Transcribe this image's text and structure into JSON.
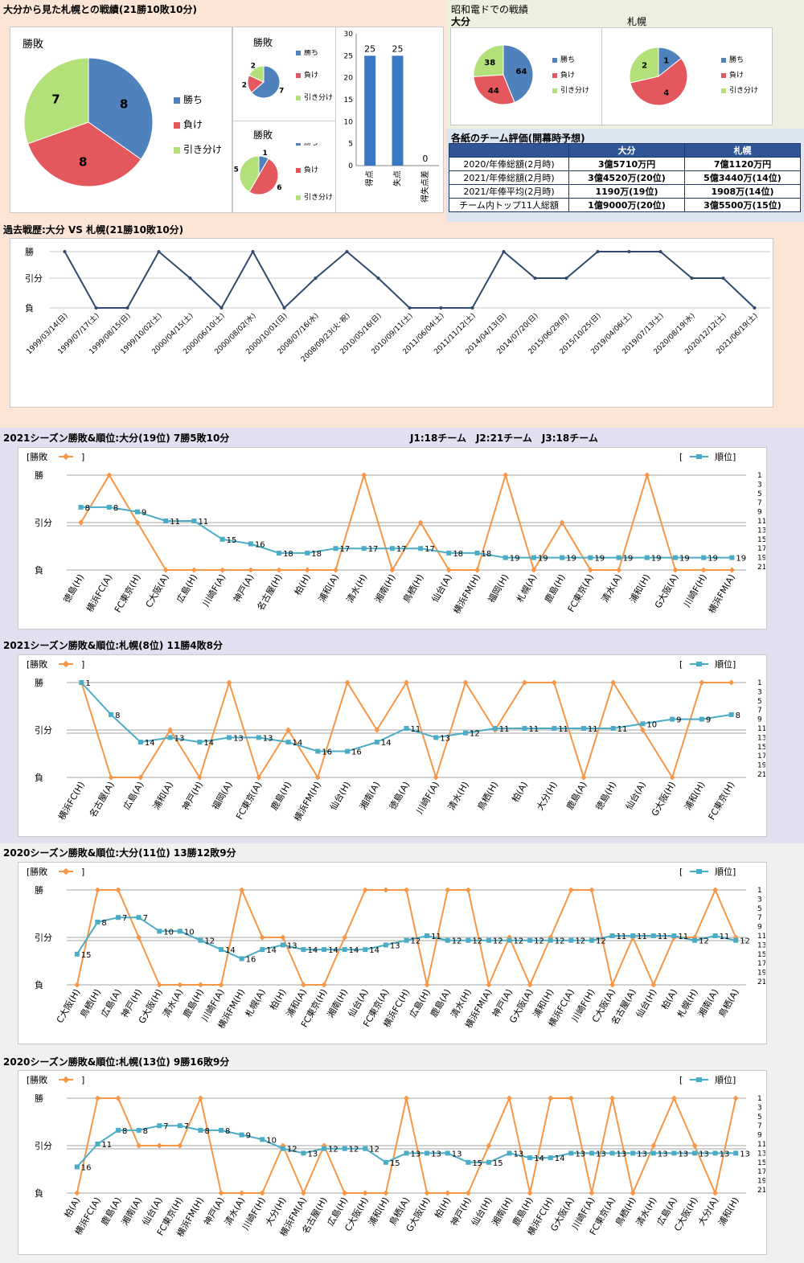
{
  "top": {
    "title": "大分から見た札幌との戦績(21勝10敗10分)",
    "pie_label_main": "勝敗",
    "pie_label_small1": "勝敗",
    "pie_label_small2": "勝敗",
    "legend": [
      "勝ち",
      "負け",
      "引き分け"
    ]
  },
  "showa": {
    "title": "昭和電ドでの戦績",
    "label_oita": "大分",
    "label_sapporo": "札幌"
  },
  "eval_table": {
    "title": "各紙のチーム評価(開幕時予想)",
    "headers": [
      "",
      "大分",
      "札幌"
    ],
    "rows": [
      [
        "2020/年俸総額(2月時)",
        "3億5710万円",
        "7億1120万円"
      ],
      [
        "2021/年俸総額(2月時)",
        "3億4520万(20位)",
        "5億3440万(14位)"
      ],
      [
        "2021/年俸平均(2月時)",
        "1190万(19位)",
        "1908万(14位)"
      ],
      [
        "チーム内トップ11人総額",
        "1億9000万(20位)",
        "3億5500万(15位)"
      ]
    ]
  },
  "history_title": "過去戦歴:大分 VS 札幌(21勝10敗10分)",
  "league_info": "J1:18チーム　J2:21チーム　J3:18チーム",
  "section_titles": [
    "2021シーズン勝敗&順位:大分(19位) 7勝5敗10分",
    "2021シーズン勝敗&順位:札幌(8位) 11勝4敗8分",
    "2020シーズン勝敗&順位:大分(11位) 13勝12敗9分",
    "2020シーズン勝敗&順位:札幌(13位) 9勝16敗9分"
  ],
  "season_legend": {
    "result": "[勝敗",
    "close": "]",
    "rank_open": "[",
    "rank": "順位]"
  },
  "chart_data": [
    {
      "type": "pie",
      "title": "勝敗",
      "categories": [
        "勝ち",
        "負け",
        "引き分け"
      ],
      "values": [
        8,
        8,
        7
      ],
      "colors": [
        "#4f81bd",
        "#e4575c",
        "#b4e07a"
      ]
    },
    {
      "type": "pie",
      "title": "勝敗",
      "categories": [
        "勝ち",
        "負け",
        "引き分け"
      ],
      "values": [
        7,
        2,
        2
      ],
      "colors": [
        "#4f81bd",
        "#e4575c",
        "#b4e07a"
      ]
    },
    {
      "type": "pie",
      "title": "勝敗",
      "categories": [
        "勝ち",
        "負け",
        "引き分け"
      ],
      "values": [
        1,
        6,
        5
      ],
      "colors": [
        "#4f81bd",
        "#e4575c",
        "#b4e07a"
      ]
    },
    {
      "type": "bar",
      "categories": [
        "得点",
        "失点",
        "得失点差"
      ],
      "values": [
        25,
        25,
        0
      ],
      "ylim": [
        0,
        30
      ],
      "yticks": [
        0,
        5,
        10,
        15,
        20,
        25,
        30
      ]
    },
    {
      "type": "pie",
      "title": "大分",
      "categories": [
        "勝ち",
        "負け",
        "引き分け"
      ],
      "values": [
        64,
        44,
        38
      ],
      "colors": [
        "#4f81bd",
        "#e4575c",
        "#b4e07a"
      ]
    },
    {
      "type": "pie",
      "title": "札幌",
      "categories": [
        "勝ち",
        "負け",
        "引き分け"
      ],
      "values": [
        1,
        4,
        2
      ],
      "colors": [
        "#4f81bd",
        "#e4575c",
        "#b4e07a"
      ]
    },
    {
      "type": "line",
      "ylabels": [
        "勝",
        "引分",
        "負"
      ],
      "categories": [
        "1999/03/14(日)",
        "1999/07/17(土)",
        "1999/08/15(日)",
        "1999/10/02(土)",
        "2000/04/15(土)",
        "2000/06/10(土)",
        "2000/08/02(水)",
        "2000/10/01(日)",
        "2008/07/16(水)",
        "2008/09/23(火･祝)",
        "2010/05/16(日)",
        "2010/09/11(土)",
        "2011/06/04(土)",
        "2011/11/12(土)",
        "2014/04/13(日)",
        "2014/07/20(日)",
        "2015/06/29(月)",
        "2015/10/25(日)",
        "2019/04/06(土)",
        "2019/07/13(土)",
        "2020/08/19(水)",
        "2020/12/12(土)",
        "2021/06/19(土)"
      ],
      "values": [
        2,
        0,
        0,
        2,
        1,
        0,
        2,
        0,
        1,
        2,
        1,
        0,
        0,
        0,
        2,
        1,
        1,
        2,
        2,
        2,
        1,
        1,
        0
      ]
    },
    {
      "type": "line",
      "ylabels": [
        "勝",
        "引分",
        "負"
      ],
      "rank_ticks": [
        1,
        3,
        5,
        7,
        9,
        11,
        13,
        15,
        17,
        19,
        21
      ],
      "categories": [
        "徳島(H)",
        "横浜FC(A)",
        "FC東京(H)",
        "C大阪(A)",
        "広島(H)",
        "川崎F(A)",
        "神戸(A)",
        "名古屋(H)",
        "柏(H)",
        "浦和(A)",
        "清水(H)",
        "湘南(H)",
        "鳥栖(H)",
        "仙台(A)",
        "横浜FM(H)",
        "福岡(H)",
        "札幌(A)",
        "鹿島(H)",
        "FC東京(A)",
        "清水(A)",
        "浦和(H)",
        "G大阪(A)",
        "川崎F(H)",
        "横浜FM(A)"
      ],
      "series": [
        {
          "name": "勝敗",
          "values": [
            1,
            2,
            1,
            0,
            0,
            0,
            0,
            0,
            0,
            0,
            2,
            0,
            1,
            0,
            0,
            2,
            0,
            1,
            0,
            0,
            2,
            0,
            0,
            0
          ]
        },
        {
          "name": "順位",
          "values": [
            8,
            8,
            9,
            11,
            11,
            15,
            16,
            18,
            18,
            17,
            17,
            17,
            17,
            18,
            18,
            19,
            19,
            19,
            19,
            19,
            19,
            19,
            19,
            19
          ]
        }
      ]
    },
    {
      "type": "line",
      "ylabels": [
        "勝",
        "引分",
        "負"
      ],
      "rank_ticks": [
        1,
        3,
        5,
        7,
        9,
        11,
        13,
        15,
        17,
        19,
        21
      ],
      "categories": [
        "横浜FC(H)",
        "名古屋(A)",
        "広島(A)",
        "浦和(A)",
        "神戸(H)",
        "福岡(A)",
        "FC東京(A)",
        "鹿島(H)",
        "横浜FM(H)",
        "仙台(H)",
        "湘南(A)",
        "徳島(A)",
        "川崎F(A)",
        "清水(H)",
        "鳥栖(H)",
        "柏(A)",
        "大分(H)",
        "鹿島(A)",
        "徳島(H)",
        "仙台(A)",
        "G大阪(H)",
        "浦和(H)",
        "FC東京(H)"
      ],
      "series": [
        {
          "name": "勝敗",
          "values": [
            2,
            0,
            0,
            1,
            0,
            2,
            0,
            1,
            0,
            2,
            1,
            2,
            0,
            2,
            1,
            2,
            2,
            0,
            2,
            1,
            0,
            2,
            2
          ]
        },
        {
          "name": "順位",
          "values": [
            1,
            8,
            14,
            13,
            14,
            13,
            13,
            14,
            16,
            16,
            14,
            11,
            13,
            12,
            11,
            11,
            11,
            11,
            11,
            10,
            9,
            9,
            8
          ]
        }
      ]
    },
    {
      "type": "line",
      "ylabels": [
        "勝",
        "引分",
        "負"
      ],
      "rank_ticks": [
        1,
        3,
        5,
        7,
        9,
        11,
        13,
        15,
        17,
        19,
        21
      ],
      "categories": [
        "C大阪(H)",
        "鳥栖(H)",
        "広島(A)",
        "神戸(H)",
        "G大阪(H)",
        "清水(A)",
        "鹿島(H)",
        "川崎F(A)",
        "横浜FM(H)",
        "札幌(A)",
        "柏(H)",
        "浦和(A)",
        "FC東京(H)",
        "湘南(H)",
        "仙台(A)",
        "FC東京(A)",
        "横浜FC(H)",
        "広島(H)",
        "鹿島(A)",
        "清水(H)",
        "横浜FM(A)",
        "神戸(A)",
        "G大阪(A)",
        "浦和(H)",
        "横浜FC(A)",
        "川崎F(H)",
        "C大阪(A)",
        "名古屋(A)",
        "仙台(H)",
        "柏(A)",
        "札幌(H)",
        "湘南(A)",
        "鳥栖(A)"
      ],
      "series": [
        {
          "name": "勝敗",
          "values": [
            0,
            2,
            2,
            1,
            0,
            0,
            0,
            0,
            2,
            1,
            1,
            0,
            0,
            1,
            2,
            2,
            2,
            0,
            2,
            2,
            0,
            1,
            0,
            1,
            2,
            2,
            0,
            1,
            0,
            1,
            1,
            2,
            1
          ]
        },
        {
          "name": "順位",
          "values": [
            15,
            8,
            7,
            7,
            10,
            10,
            12,
            14,
            16,
            14,
            13,
            14,
            14,
            14,
            14,
            13,
            12,
            11,
            12,
            12,
            12,
            12,
            12,
            12,
            12,
            12,
            11,
            11,
            11,
            11,
            12,
            11,
            12
          ]
        }
      ]
    },
    {
      "type": "line",
      "ylabels": [
        "勝",
        "引分",
        "負"
      ],
      "rank_ticks": [
        1,
        3,
        5,
        7,
        9,
        11,
        13,
        15,
        17,
        19,
        21
      ],
      "categories": [
        "柏(A)",
        "横浜FC(A)",
        "鹿島(A)",
        "湘南(A)",
        "仙台(A)",
        "FC東京(H)",
        "横浜FM(H)",
        "神戸(A)",
        "清水(A)",
        "川崎F(H)",
        "大分(H)",
        "横浜FM(A)",
        "名古屋(H)",
        "広島(H)",
        "C大阪(H)",
        "浦和(H)",
        "鳥栖(A)",
        "G大阪(H)",
        "柏(H)",
        "神戸(H)",
        "仙台(H)",
        "湘南(H)",
        "鹿島(H)",
        "横浜FC(H)",
        "G大阪(A)",
        "川崎F(A)",
        "FC東京(A)",
        "鳥栖(H)",
        "清水(H)",
        "広島(A)",
        "C大阪(H)",
        "大分(A)",
        "浦和(H)"
      ],
      "series": [
        {
          "name": "勝敗",
          "values": [
            0,
            2,
            2,
            1,
            1,
            1,
            2,
            0,
            0,
            0,
            1,
            0,
            1,
            0,
            0,
            0,
            2,
            0,
            0,
            0,
            1,
            2,
            0,
            2,
            2,
            0,
            2,
            0,
            1,
            2,
            1,
            0,
            2
          ]
        },
        {
          "name": "順位",
          "values": [
            16,
            11,
            8,
            8,
            7,
            7,
            8,
            8,
            9,
            10,
            12,
            13,
            12,
            12,
            12,
            15,
            13,
            13,
            13,
            15,
            15,
            13,
            14,
            14,
            13,
            13,
            13,
            13,
            13,
            13,
            13,
            13,
            13
          ]
        }
      ]
    }
  ]
}
